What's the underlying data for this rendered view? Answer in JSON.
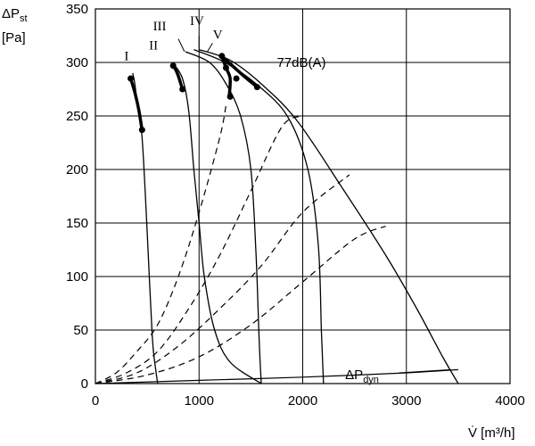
{
  "chart_data": {
    "type": "line",
    "ylabel_main": "ΔP",
    "ylabel_sub": "st",
    "ylabel_unit": "[Pa]",
    "xlabel": "V̇ [m³/h]",
    "xlim": [
      0,
      4000
    ],
    "ylim": [
      0,
      350
    ],
    "x_ticks": [
      0,
      1000,
      2000,
      3000,
      4000
    ],
    "y_ticks": [
      0,
      50,
      100,
      150,
      200,
      250,
      300,
      350
    ],
    "grid": "major",
    "noise_label": "77dB(A)",
    "dynamic_label_main": "ΔP",
    "dynamic_label_sub": "dyn",
    "series": [
      {
        "name": "I",
        "points": [
          [
            360,
            290
          ],
          [
            380,
            280
          ],
          [
            420,
            250
          ],
          [
            450,
            230
          ],
          [
            480,
            180
          ],
          [
            510,
            120
          ],
          [
            540,
            60
          ],
          [
            560,
            30
          ],
          [
            600,
            0
          ]
        ],
        "bold": [
          [
            340,
            285
          ],
          [
            380,
            272
          ],
          [
            420,
            255
          ],
          [
            450,
            237
          ]
        ],
        "dots": [
          [
            340,
            285
          ],
          [
            450,
            237
          ]
        ]
      },
      {
        "name": "II",
        "points": [
          [
            760,
            298
          ],
          [
            840,
            285
          ],
          [
            900,
            255
          ],
          [
            950,
            200
          ],
          [
            1000,
            150
          ],
          [
            1050,
            100
          ],
          [
            1150,
            50
          ],
          [
            1300,
            20
          ],
          [
            1600,
            0
          ]
        ],
        "bold": [
          [
            750,
            297
          ],
          [
            790,
            290
          ],
          [
            840,
            275
          ]
        ],
        "dots": [
          [
            750,
            297
          ],
          [
            840,
            275
          ]
        ]
      },
      {
        "name": "III",
        "points": [
          [
            870,
            310
          ],
          [
            1100,
            300
          ],
          [
            1260,
            280
          ],
          [
            1400,
            250
          ],
          [
            1500,
            200
          ],
          [
            1550,
            120
          ],
          [
            1580,
            40
          ],
          [
            1600,
            0
          ]
        ],
        "bold": [],
        "dots": []
      },
      {
        "name": "IV",
        "points": [
          [
            950,
            312
          ],
          [
            1250,
            300
          ],
          [
            1550,
            280
          ],
          [
            1850,
            250
          ],
          [
            2050,
            200
          ],
          [
            2150,
            130
          ],
          [
            2180,
            50
          ],
          [
            2200,
            0
          ]
        ],
        "bold": [
          [
            1220,
            306
          ],
          [
            1260,
            295
          ],
          [
            1300,
            285
          ],
          [
            1290,
            268
          ]
        ],
        "dots": [
          [
            1220,
            306
          ],
          [
            1260,
            295
          ],
          [
            1360,
            285
          ],
          [
            1300,
            268
          ]
        ]
      },
      {
        "name": "V",
        "points": [
          [
            1000,
            312
          ],
          [
            1300,
            302
          ],
          [
            1600,
            280
          ],
          [
            1950,
            245
          ],
          [
            2400,
            180
          ],
          [
            2800,
            120
          ],
          [
            3100,
            70
          ],
          [
            3350,
            25
          ],
          [
            3500,
            0
          ]
        ],
        "bold": [
          [
            1220,
            306
          ],
          [
            1400,
            290
          ],
          [
            1560,
            277
          ]
        ],
        "dots": [
          [
            1560,
            277
          ]
        ]
      }
    ],
    "system_curves": [
      {
        "name": "",
        "points": [
          [
            0,
            0
          ],
          [
            200,
            10
          ],
          [
            400,
            30
          ],
          [
            600,
            55
          ],
          [
            800,
            100
          ],
          [
            1000,
            160
          ],
          [
            1200,
            230
          ],
          [
            1260,
            260
          ]
        ]
      },
      {
        "name": "",
        "points": [
          [
            0,
            0
          ],
          [
            300,
            10
          ],
          [
            600,
            30
          ],
          [
            900,
            70
          ],
          [
            1200,
            120
          ],
          [
            1500,
            180
          ],
          [
            1800,
            240
          ],
          [
            2000,
            250
          ]
        ]
      },
      {
        "name": "",
        "points": [
          [
            0,
            0
          ],
          [
            400,
            10
          ],
          [
            800,
            35
          ],
          [
            1200,
            70
          ],
          [
            1600,
            110
          ],
          [
            2000,
            160
          ],
          [
            2450,
            195
          ]
        ]
      },
      {
        "name": "",
        "points": [
          [
            0,
            0
          ],
          [
            500,
            8
          ],
          [
            1000,
            25
          ],
          [
            1500,
            55
          ],
          [
            2000,
            95
          ],
          [
            2500,
            135
          ],
          [
            2800,
            147
          ]
        ]
      }
    ],
    "dynamic_curve": {
      "points": [
        [
          0,
          0
        ],
        [
          1000,
          3
        ],
        [
          2000,
          6
        ],
        [
          3000,
          10
        ],
        [
          3500,
          13
        ]
      ]
    },
    "noise_line_y": 300
  }
}
